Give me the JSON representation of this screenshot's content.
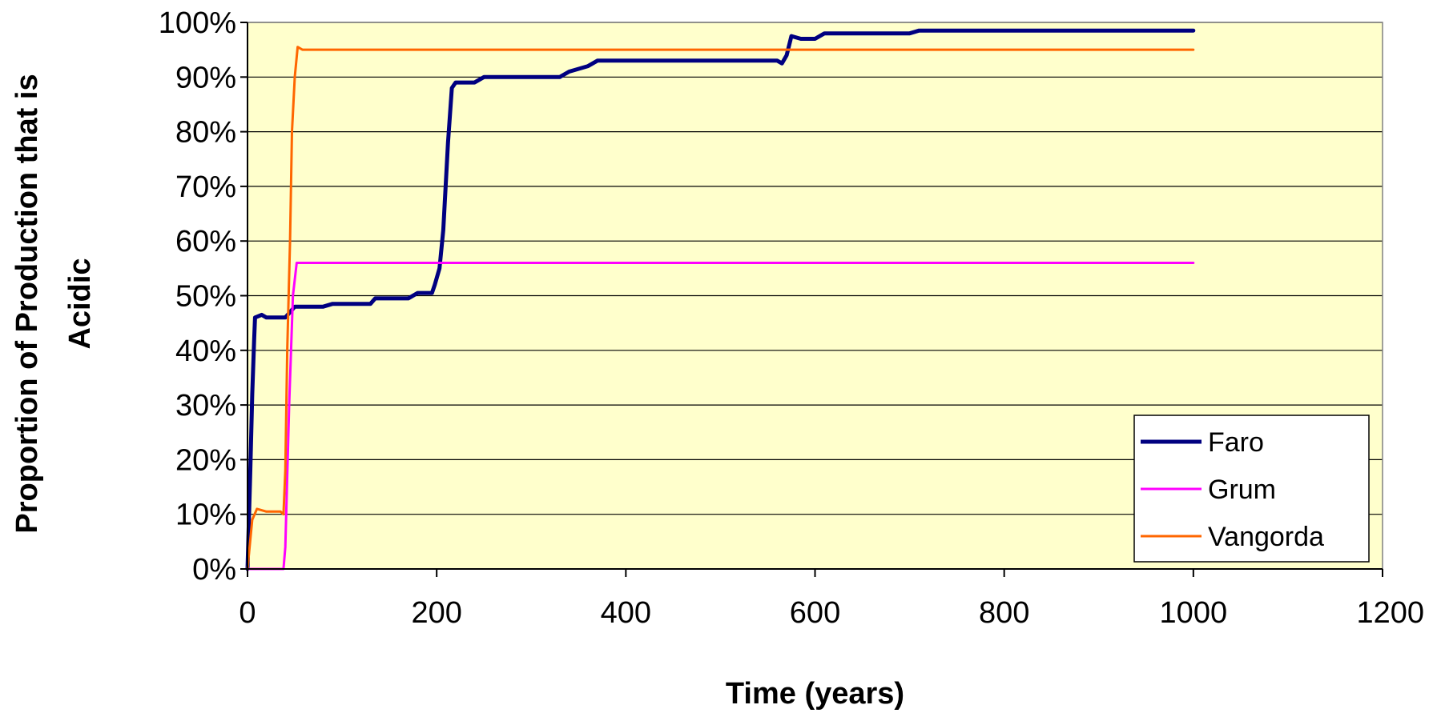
{
  "chart_data": {
    "type": "line",
    "title": "",
    "xlabel": "Time (years)",
    "ylabel_lines": [
      "Proportion of Production that is",
      "Acidic"
    ],
    "xlim": [
      0,
      1200
    ],
    "ylim": [
      0,
      100
    ],
    "x_ticks": [
      0,
      200,
      400,
      600,
      800,
      1000,
      1200
    ],
    "x_tick_labels": [
      "0",
      "200",
      "400",
      "600",
      "800",
      "1000",
      "1200"
    ],
    "y_ticks": [
      0,
      10,
      20,
      30,
      40,
      50,
      60,
      70,
      80,
      90,
      100
    ],
    "y_tick_labels": [
      "0%",
      "10%",
      "20%",
      "30%",
      "40%",
      "50%",
      "60%",
      "70%",
      "80%",
      "90%",
      "100%"
    ],
    "grid": true,
    "plot_background": "#FFFFCC",
    "legend_position": "bottom-right",
    "series": [
      {
        "name": "Faro",
        "color": "#000080",
        "width": 5,
        "points": [
          [
            0,
            0
          ],
          [
            3,
            18
          ],
          [
            5,
            32
          ],
          [
            7,
            42
          ],
          [
            8,
            46
          ],
          [
            15,
            46.5
          ],
          [
            20,
            46
          ],
          [
            40,
            46
          ],
          [
            45,
            47
          ],
          [
            50,
            48
          ],
          [
            80,
            48
          ],
          [
            90,
            48.5
          ],
          [
            130,
            48.5
          ],
          [
            135,
            49.5
          ],
          [
            170,
            49.5
          ],
          [
            180,
            50.5
          ],
          [
            195,
            50.5
          ],
          [
            198,
            52
          ],
          [
            203,
            55
          ],
          [
            207,
            62
          ],
          [
            212,
            78
          ],
          [
            216,
            88
          ],
          [
            220,
            89
          ],
          [
            240,
            89
          ],
          [
            250,
            90
          ],
          [
            330,
            90
          ],
          [
            340,
            91
          ],
          [
            360,
            92
          ],
          [
            370,
            93
          ],
          [
            560,
            93
          ],
          [
            565,
            92.5
          ],
          [
            570,
            94
          ],
          [
            575,
            97.5
          ],
          [
            585,
            97
          ],
          [
            600,
            97
          ],
          [
            610,
            98
          ],
          [
            700,
            98
          ],
          [
            710,
            98.5
          ],
          [
            1000,
            98.5
          ]
        ]
      },
      {
        "name": "Grum",
        "color": "#FF00FF",
        "width": 3,
        "points": [
          [
            0,
            0
          ],
          [
            38,
            0
          ],
          [
            40,
            4
          ],
          [
            44,
            30
          ],
          [
            48,
            50
          ],
          [
            52,
            56
          ],
          [
            1000,
            56
          ]
        ]
      },
      {
        "name": "Vangorda",
        "color": "#FF6600",
        "width": 3,
        "points": [
          [
            0,
            0
          ],
          [
            5,
            9
          ],
          [
            10,
            11
          ],
          [
            20,
            10.5
          ],
          [
            35,
            10.5
          ],
          [
            38,
            10
          ],
          [
            40,
            18
          ],
          [
            42,
            40
          ],
          [
            45,
            60
          ],
          [
            47,
            80
          ],
          [
            50,
            90
          ],
          [
            53,
            95.5
          ],
          [
            58,
            95
          ],
          [
            1000,
            95
          ]
        ]
      }
    ]
  }
}
